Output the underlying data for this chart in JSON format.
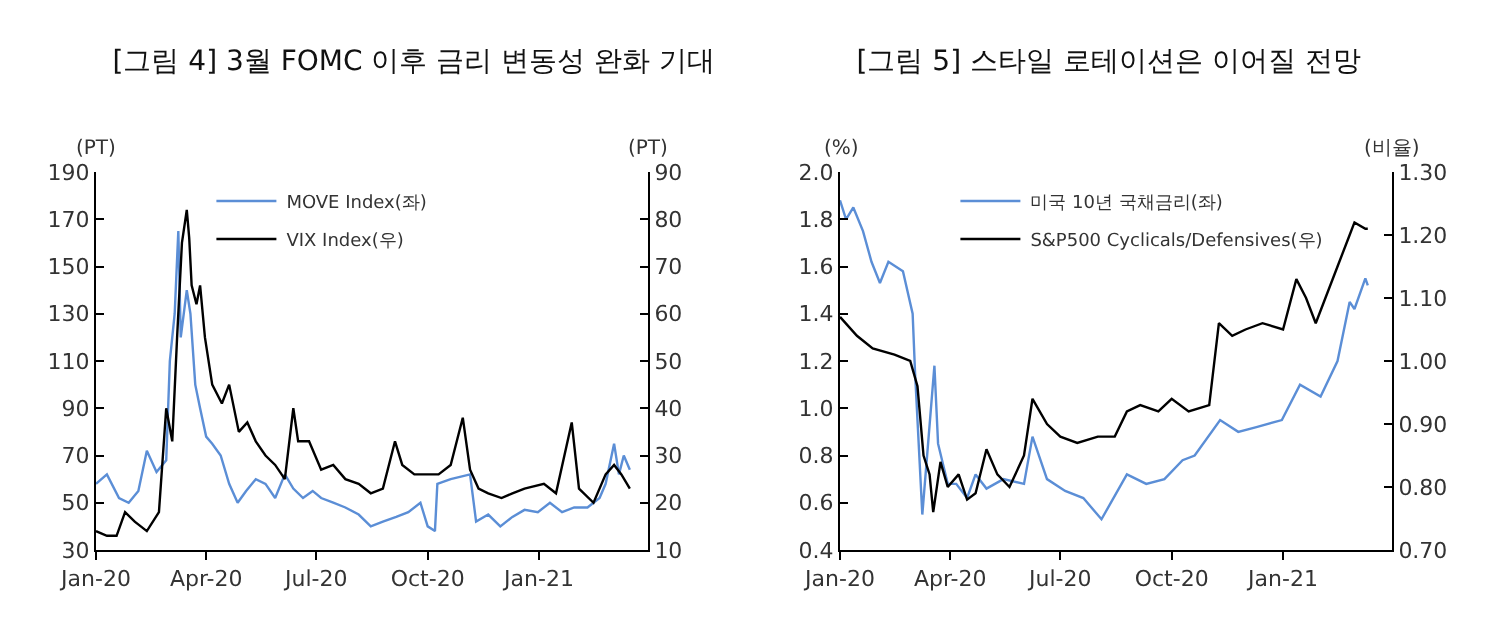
{
  "chart_data": [
    {
      "type": "line",
      "title": "[그림 4] 3월 FOMC 이후 금리 변동성 완화 기대",
      "ylabel": "(PT)",
      "y2label": "(PT)",
      "xlim": [
        "2020-01-01",
        "2021-04-01"
      ],
      "xticks": [
        {
          "value": "2020-01-01",
          "label": "Jan-20"
        },
        {
          "value": "2020-04-01",
          "label": "Apr-20"
        },
        {
          "value": "2020-07-01",
          "label": "Jul-20"
        },
        {
          "value": "2020-10-01",
          "label": "Oct-20"
        },
        {
          "value": "2021-01-01",
          "label": "Jan-21"
        }
      ],
      "ylim": [
        30,
        190
      ],
      "yticks": [
        30,
        50,
        70,
        90,
        110,
        130,
        150,
        170,
        190
      ],
      "y2lim": [
        10,
        90
      ],
      "y2ticks": [
        10,
        20,
        30,
        40,
        50,
        60,
        70,
        80,
        90
      ],
      "grid": false,
      "legend": "top",
      "marker": "none",
      "line_style": "solid",
      "series": [
        {
          "name": "MOVE Index(좌)",
          "color": "#5b8ed6",
          "x": [
            "2020-01-01",
            "2020-01-10",
            "2020-01-20",
            "2020-01-28",
            "2020-02-05",
            "2020-02-12",
            "2020-02-20",
            "2020-02-28",
            "2020-03-02",
            "2020-03-06",
            "2020-03-09",
            "2020-03-11",
            "2020-03-16",
            "2020-03-19",
            "2020-03-23",
            "2020-03-27",
            "2020-04-01",
            "2020-04-06",
            "2020-04-13",
            "2020-04-20",
            "2020-04-27",
            "2020-05-04",
            "2020-05-12",
            "2020-05-20",
            "2020-05-28",
            "2020-06-05",
            "2020-06-12",
            "2020-06-20",
            "2020-06-28",
            "2020-07-05",
            "2020-07-15",
            "2020-07-25",
            "2020-08-05",
            "2020-08-15",
            "2020-08-25",
            "2020-09-05",
            "2020-09-15",
            "2020-09-25",
            "2020-10-01",
            "2020-10-07",
            "2020-10-09",
            "2020-10-20",
            "2020-11-05",
            "2020-11-10",
            "2020-11-20",
            "2020-11-30",
            "2020-12-10",
            "2020-12-20",
            "2020-12-31",
            "2021-01-10",
            "2021-01-20",
            "2021-01-30",
            "2021-02-10",
            "2021-02-20",
            "2021-02-25",
            "2021-03-04",
            "2021-03-08",
            "2021-03-12",
            "2021-03-17"
          ],
          "values": [
            58,
            62,
            52,
            50,
            55,
            72,
            63,
            68,
            110,
            130,
            165,
            120,
            140,
            130,
            100,
            90,
            78,
            75,
            70,
            58,
            50,
            55,
            60,
            58,
            52,
            62,
            56,
            52,
            55,
            52,
            50,
            48,
            45,
            40,
            42,
            44,
            46,
            50,
            40,
            38,
            58,
            60,
            62,
            42,
            45,
            40,
            44,
            47,
            46,
            50,
            46,
            48,
            48,
            52,
            58,
            75,
            62,
            70,
            64
          ]
        },
        {
          "name": "VIX Index(우)",
          "color": "#000000",
          "axis": "y2",
          "x": [
            "2020-01-01",
            "2020-01-10",
            "2020-01-18",
            "2020-01-25",
            "2020-02-02",
            "2020-02-12",
            "2020-02-22",
            "2020-02-28",
            "2020-03-04",
            "2020-03-08",
            "2020-03-12",
            "2020-03-16",
            "2020-03-18",
            "2020-03-20",
            "2020-03-24",
            "2020-03-27",
            "2020-03-31",
            "2020-04-06",
            "2020-04-14",
            "2020-04-20",
            "2020-04-28",
            "2020-05-05",
            "2020-05-12",
            "2020-05-20",
            "2020-05-28",
            "2020-06-05",
            "2020-06-12",
            "2020-06-16",
            "2020-06-25",
            "2020-07-05",
            "2020-07-15",
            "2020-07-25",
            "2020-08-05",
            "2020-08-15",
            "2020-08-25",
            "2020-09-04",
            "2020-09-10",
            "2020-09-20",
            "2020-09-30",
            "2020-10-10",
            "2020-10-20",
            "2020-10-30",
            "2020-11-05",
            "2020-11-12",
            "2020-11-20",
            "2020-12-01",
            "2020-12-10",
            "2020-12-20",
            "2021-01-05",
            "2021-01-15",
            "2021-01-28",
            "2021-02-03",
            "2021-02-15",
            "2021-02-25",
            "2021-03-04",
            "2021-03-10",
            "2021-03-17"
          ],
          "values": [
            14,
            13,
            13,
            18,
            16,
            14,
            18,
            40,
            33,
            55,
            75,
            82,
            76,
            66,
            62,
            66,
            55,
            45,
            41,
            45,
            35,
            37,
            33,
            30,
            28,
            25,
            40,
            33,
            33,
            27,
            28,
            25,
            24,
            22,
            23,
            33,
            28,
            26,
            26,
            26,
            28,
            38,
            27,
            23,
            22,
            21,
            22,
            23,
            24,
            22,
            37,
            23,
            20,
            26,
            28,
            26,
            23
          ]
        }
      ]
    },
    {
      "type": "line",
      "title": "[그림 5] 스타일 로테이션은 이어질 전망",
      "ylabel": "(%)",
      "y2label": "(비율)",
      "xlim": [
        "2020-01-01",
        "2021-04-01"
      ],
      "xticks": [
        {
          "value": "2020-01-01",
          "label": "Jan-20"
        },
        {
          "value": "2020-04-01",
          "label": "Apr-20"
        },
        {
          "value": "2020-07-01",
          "label": "Jul-20"
        },
        {
          "value": "2020-10-01",
          "label": "Oct-20"
        },
        {
          "value": "2021-01-01",
          "label": "Jan-21"
        }
      ],
      "ylim": [
        0.4,
        2.0
      ],
      "yticks": [
        {
          "value": 0.4,
          "label": "0.4"
        },
        {
          "value": 0.6,
          "label": "0.6"
        },
        {
          "value": 0.8,
          "label": "0.8"
        },
        {
          "value": 1.0,
          "label": "1.0"
        },
        {
          "value": 1.2,
          "label": "1.2"
        },
        {
          "value": 1.4,
          "label": "1.4"
        },
        {
          "value": 1.6,
          "label": "1.6"
        },
        {
          "value": 1.8,
          "label": "1.8"
        },
        {
          "value": 2.0,
          "label": "2.0"
        }
      ],
      "y2lim": [
        0.7,
        1.3
      ],
      "y2ticks": [
        {
          "value": 0.7,
          "label": "0.70"
        },
        {
          "value": 0.8,
          "label": "0.80"
        },
        {
          "value": 0.9,
          "label": "0.90"
        },
        {
          "value": 1.0,
          "label": "1.00"
        },
        {
          "value": 1.1,
          "label": "1.10"
        },
        {
          "value": 1.2,
          "label": "1.20"
        },
        {
          "value": 1.3,
          "label": "1.30"
        }
      ],
      "grid": false,
      "legend": "top",
      "marker": "none",
      "line_style": "solid",
      "series": [
        {
          "name": "미국 10년 국채금리(좌)",
          "color": "#5b8ed6",
          "x": [
            "2020-01-01",
            "2020-01-06",
            "2020-01-12",
            "2020-01-20",
            "2020-01-27",
            "2020-02-03",
            "2020-02-10",
            "2020-02-22",
            "2020-03-01",
            "2020-03-03",
            "2020-03-09",
            "2020-03-19",
            "2020-03-22",
            "2020-03-30",
            "2020-04-06",
            "2020-04-15",
            "2020-04-22",
            "2020-05-01",
            "2020-05-15",
            "2020-06-01",
            "2020-06-08",
            "2020-06-20",
            "2020-07-05",
            "2020-07-20",
            "2020-08-04",
            "2020-08-25",
            "2020-09-10",
            "2020-09-25",
            "2020-10-10",
            "2020-10-20",
            "2020-11-10",
            "2020-11-25",
            "2020-12-10",
            "2020-12-31",
            "2021-01-15",
            "2021-02-01",
            "2021-02-15",
            "2021-02-25",
            "2021-03-01",
            "2021-03-10",
            "2021-03-12"
          ],
          "values": [
            1.88,
            1.8,
            1.85,
            1.75,
            1.62,
            1.53,
            1.62,
            1.58,
            1.4,
            1.15,
            0.55,
            1.18,
            0.85,
            0.68,
            0.68,
            0.62,
            0.72,
            0.66,
            0.7,
            0.68,
            0.88,
            0.7,
            0.65,
            0.62,
            0.53,
            0.72,
            0.68,
            0.7,
            0.78,
            0.8,
            0.95,
            0.9,
            0.92,
            0.95,
            1.1,
            1.05,
            1.2,
            1.45,
            1.42,
            1.55,
            1.52
          ]
        },
        {
          "name": "S&P500 Cyclicals/Defensives(우)",
          "color": "#000000",
          "axis": "y2",
          "x": [
            "2020-01-01",
            "2020-01-15",
            "2020-01-28",
            "2020-02-15",
            "2020-02-28",
            "2020-03-05",
            "2020-03-10",
            "2020-03-15",
            "2020-03-18",
            "2020-03-24",
            "2020-03-30",
            "2020-04-08",
            "2020-04-15",
            "2020-04-22",
            "2020-05-01",
            "2020-05-10",
            "2020-05-20",
            "2020-06-01",
            "2020-06-08",
            "2020-06-20",
            "2020-07-01",
            "2020-07-15",
            "2020-08-01",
            "2020-08-15",
            "2020-08-25",
            "2020-09-05",
            "2020-09-20",
            "2020-10-01",
            "2020-10-15",
            "2020-11-01",
            "2020-11-09",
            "2020-11-20",
            "2020-12-01",
            "2020-12-15",
            "2021-01-01",
            "2021-01-12",
            "2021-01-20",
            "2021-01-28",
            "2021-02-05",
            "2021-02-15",
            "2021-02-25",
            "2021-03-01",
            "2021-03-10",
            "2021-03-12"
          ],
          "values": [
            1.07,
            1.04,
            1.02,
            1.01,
            1.0,
            0.96,
            0.85,
            0.82,
            0.76,
            0.84,
            0.8,
            0.82,
            0.78,
            0.79,
            0.86,
            0.82,
            0.8,
            0.85,
            0.94,
            0.9,
            0.88,
            0.87,
            0.88,
            0.88,
            0.92,
            0.93,
            0.92,
            0.94,
            0.92,
            0.93,
            1.06,
            1.04,
            1.05,
            1.06,
            1.05,
            1.13,
            1.1,
            1.06,
            1.1,
            1.15,
            1.2,
            1.22,
            1.21,
            1.21
          ]
        }
      ]
    }
  ]
}
